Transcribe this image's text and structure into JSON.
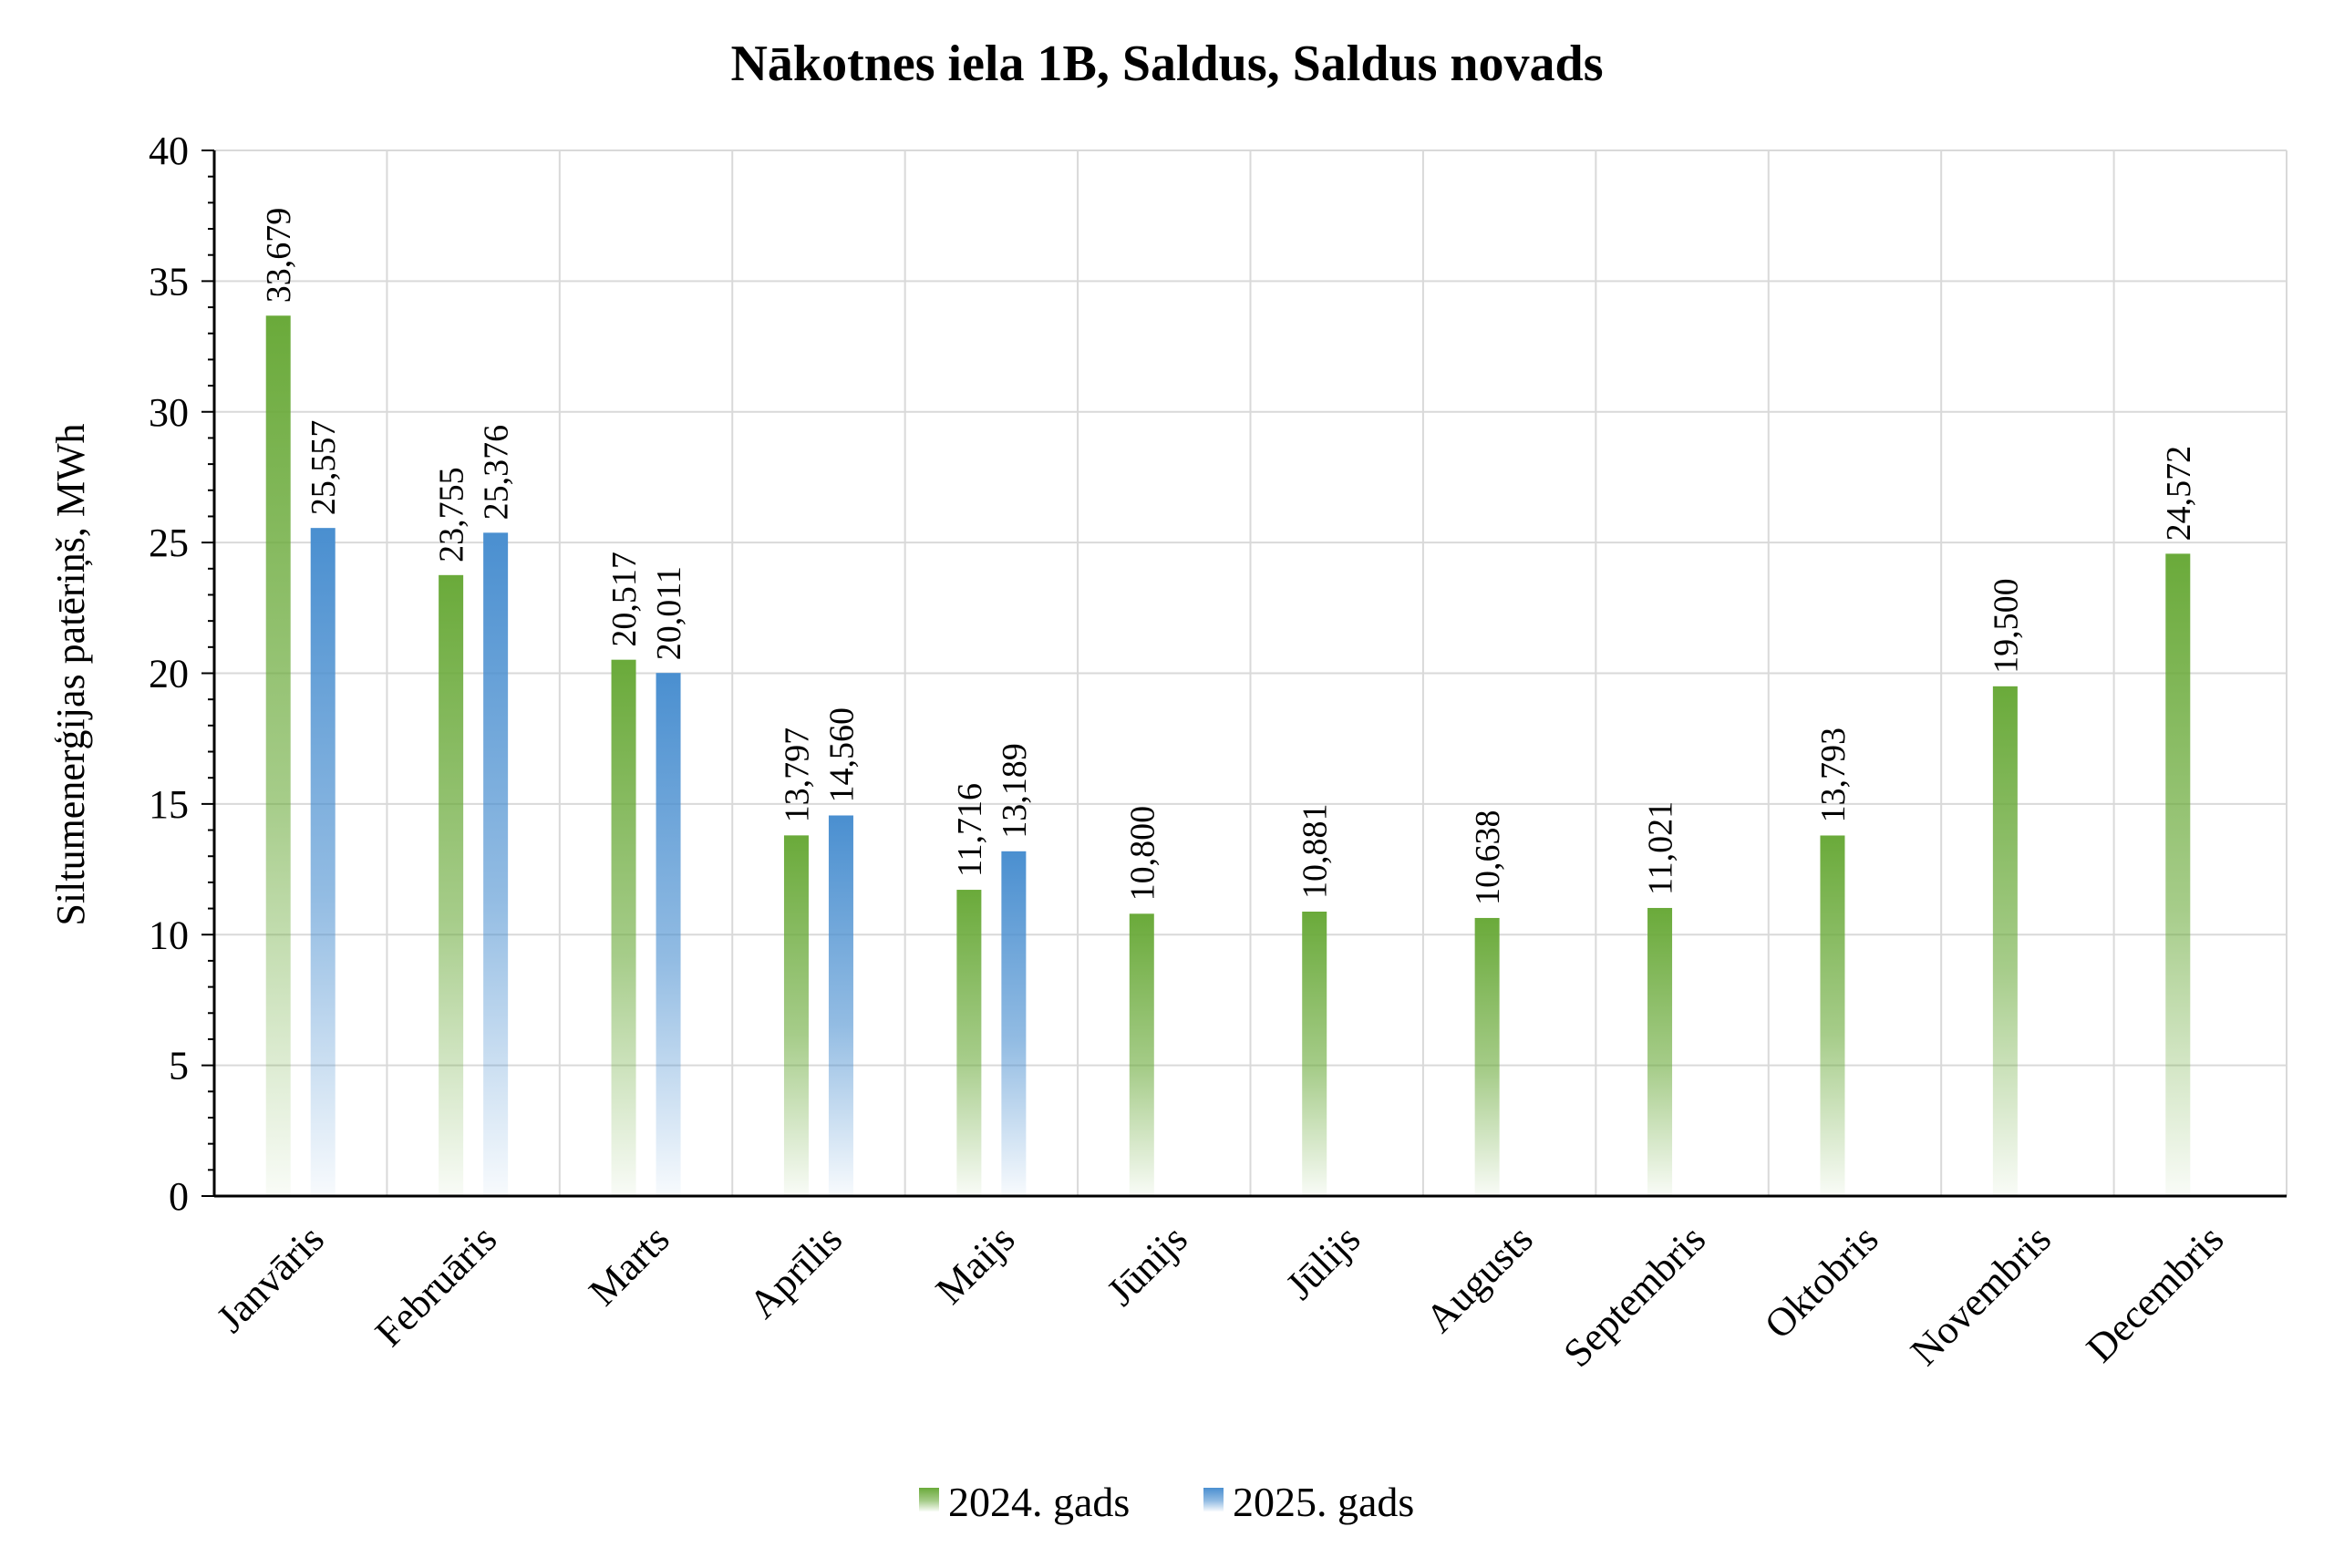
{
  "chart_data": {
    "type": "bar",
    "title": "Nākotnes iela 1B, Saldus, Saldus novads",
    "xlabel": "",
    "ylabel": "Siltumenerģijas patēriņš, MWh",
    "ylim": [
      0,
      40
    ],
    "yticks": [
      0,
      5,
      10,
      15,
      20,
      25,
      30,
      35,
      40
    ],
    "grid": true,
    "legend_position": "bottom",
    "categories": [
      "Janvāris",
      "Februāris",
      "Marts",
      "Aprīlis",
      "Maijs",
      "Jūnijs",
      "Jūlijs",
      "Augusts",
      "Septembris",
      "Oktobris",
      "Novembris",
      "Decembris"
    ],
    "series": [
      {
        "name": "2024. gads",
        "color": "#6aaa3a",
        "values": [
          33.679,
          23.755,
          20.517,
          13.797,
          11.716,
          10.8,
          10.881,
          10.638,
          11.021,
          13.793,
          19.5,
          24.572
        ],
        "labels": [
          "33,679",
          "23,755",
          "20,517",
          "13,797",
          "11,716",
          "10,800",
          "10,881",
          "10,638",
          "11,021",
          "13,793",
          "19,500",
          "24,572"
        ]
      },
      {
        "name": "2025. gads",
        "color": "#4a8fd0",
        "values": [
          25.557,
          25.376,
          20.011,
          14.56,
          13.189,
          null,
          null,
          null,
          null,
          null,
          null,
          null
        ],
        "labels": [
          "25,557",
          "25,376",
          "20,011",
          "14,560",
          "13,189",
          "",
          "",
          "",
          "",
          "",
          "",
          ""
        ]
      }
    ]
  }
}
